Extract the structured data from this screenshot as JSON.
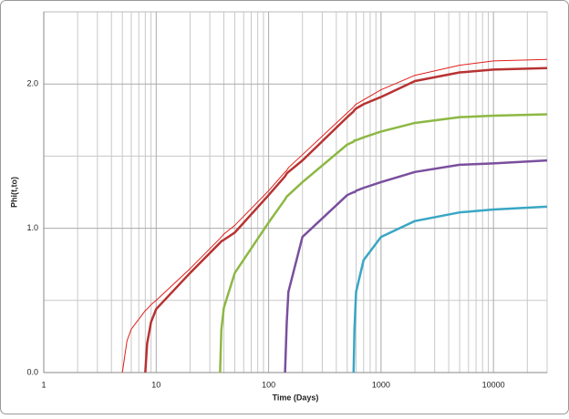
{
  "chart_data": {
    "type": "line",
    "x_label": "Time (Days)",
    "y_label": "Phi(t,to)",
    "log_x": true,
    "grid": true,
    "xlim": [
      1,
      30000
    ],
    "xticks": [
      1,
      10,
      100,
      1000,
      10000
    ],
    "ylim": [
      0,
      2.5
    ],
    "yticks": [
      {
        "value": 0,
        "label": "0.0"
      },
      {
        "value": 1,
        "label": "1.0"
      },
      {
        "value": 2,
        "label": "2.0"
      }
    ],
    "yminor": [
      0.5,
      1.5
    ],
    "x": [
      5,
      5.5,
      6,
      8,
      8.3,
      9,
      10,
      20,
      37,
      38,
      40,
      50,
      100,
      140,
      145,
      150,
      200,
      500,
      570,
      580,
      600,
      700,
      1000,
      2000,
      5000,
      10000,
      30000
    ],
    "series": [
      {
        "color": "#e0201b",
        "width": 1,
        "values": [
          0,
          0.22,
          0.3,
          0.43,
          0.44,
          0.47,
          0.5,
          0.72,
          0.93,
          0.94,
          0.96,
          1.02,
          1.26,
          1.39,
          1.4,
          1.42,
          1.51,
          1.8,
          1.84,
          1.85,
          1.86,
          1.89,
          1.96,
          2.06,
          2.13,
          2.16,
          2.17
        ]
      },
      {
        "color": "#b83232",
        "width": 2.5,
        "values": [
          null,
          null,
          null,
          0,
          0.2,
          0.35,
          0.44,
          0.69,
          0.9,
          0.91,
          0.92,
          0.97,
          1.23,
          1.36,
          1.38,
          1.39,
          1.47,
          1.77,
          1.81,
          1.82,
          1.83,
          1.86,
          1.91,
          2.02,
          2.08,
          2.1,
          2.11
        ]
      },
      {
        "color": "#8db844",
        "width": 2.5,
        "values": [
          null,
          null,
          null,
          null,
          null,
          null,
          null,
          null,
          0,
          0.3,
          0.45,
          0.69,
          1.04,
          1.2,
          1.22,
          1.23,
          1.32,
          1.58,
          1.6,
          1.61,
          1.61,
          1.63,
          1.67,
          1.73,
          1.77,
          1.78,
          1.79
        ]
      },
      {
        "color": "#7a4f9e",
        "width": 2.5,
        "values": [
          null,
          null,
          null,
          null,
          null,
          null,
          null,
          null,
          null,
          null,
          null,
          null,
          null,
          0,
          0.35,
          0.56,
          0.94,
          1.23,
          1.25,
          1.25,
          1.26,
          1.28,
          1.32,
          1.39,
          1.44,
          1.45,
          1.47
        ]
      },
      {
        "color": "#3aa6c4",
        "width": 2.5,
        "values": [
          null,
          null,
          null,
          null,
          null,
          null,
          null,
          null,
          null,
          null,
          null,
          null,
          null,
          null,
          null,
          null,
          null,
          null,
          0,
          0.3,
          0.56,
          0.78,
          0.94,
          1.05,
          1.11,
          1.13,
          1.15
        ]
      }
    ]
  }
}
